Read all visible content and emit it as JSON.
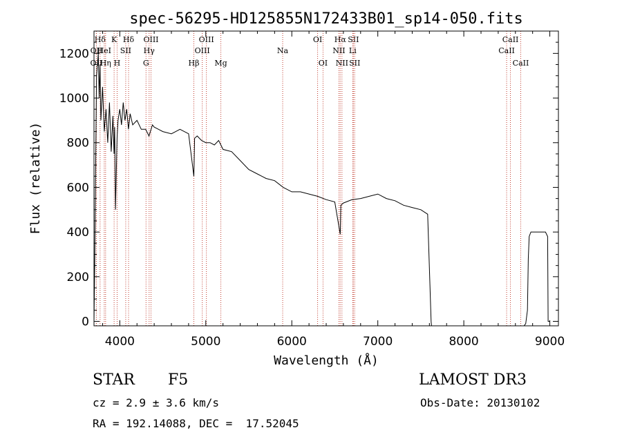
{
  "chart_data": {
    "type": "line",
    "title": "spec-56295-HD125855N172433B01_sp14-050.fits",
    "xlabel": "Wavelength (Å)",
    "ylabel": "Flux (relative)",
    "xlim": [
      3700,
      9100
    ],
    "ylim": [
      -20,
      1300
    ],
    "xticks": [
      4000,
      5000,
      6000,
      7000,
      8000,
      9000
    ],
    "yticks": [
      0,
      200,
      400,
      600,
      800,
      1000,
      1200
    ],
    "grid": false,
    "series": [
      {
        "name": "flux",
        "x": [
          3700,
          3710,
          3730,
          3750,
          3760,
          3770,
          3780,
          3800,
          3820,
          3840,
          3860,
          3880,
          3900,
          3920,
          3933,
          3940,
          3950,
          3968,
          3980,
          4000,
          4020,
          4040,
          4060,
          4080,
          4101,
          4120,
          4150,
          4200,
          4250,
          4300,
          4340,
          4380,
          4400,
          4450,
          4500,
          4600,
          4700,
          4800,
          4861,
          4870,
          4900,
          4950,
          5000,
          5050,
          5100,
          5150,
          5200,
          5300,
          5400,
          5500,
          5600,
          5700,
          5800,
          5900,
          6000,
          6100,
          6200,
          6300,
          6400,
          6500,
          6563,
          6570,
          6600,
          6700,
          6800,
          6900,
          7000,
          7100,
          7200,
          7300,
          7400,
          7500,
          7580,
          7620,
          7625,
          7630,
          7640,
          7700,
          7800,
          7900,
          8000,
          8100,
          8200,
          8300,
          8400,
          8500,
          8600,
          8700,
          8720,
          8740,
          8750,
          8760,
          8780,
          8800,
          8850,
          8900,
          8950,
          8975,
          8980,
          9000
        ],
        "y": [
          0,
          300,
          1100,
          1200,
          1000,
          1150,
          900,
          1050,
          850,
          950,
          800,
          980,
          760,
          920,
          750,
          870,
          500,
          820,
          900,
          950,
          880,
          980,
          900,
          950,
          860,
          930,
          880,
          900,
          860,
          860,
          830,
          880,
          870,
          860,
          850,
          840,
          860,
          840,
          650,
          820,
          830,
          810,
          800,
          800,
          790,
          810,
          770,
          760,
          720,
          680,
          660,
          640,
          630,
          600,
          580,
          580,
          570,
          560,
          545,
          535,
          390,
          520,
          530,
          545,
          550,
          560,
          570,
          550,
          540,
          520,
          510,
          500,
          480,
          0,
          -20,
          -30,
          -30,
          -30,
          -25,
          -30,
          -28,
          -30,
          -25,
          -30,
          -28,
          -30,
          -25,
          -20,
          -10,
          50,
          280,
          380,
          400,
          400,
          400,
          400,
          400,
          380,
          0,
          0
        ]
      }
    ],
    "spectral_lines": [
      {
        "label": "Hδ",
        "wavelength": 3771,
        "row": 1
      },
      {
        "label": "OII",
        "wavelength": 3728,
        "row": 2
      },
      {
        "label": "OII",
        "wavelength": 3727,
        "row": 3
      },
      {
        "label": "HeI",
        "wavelength": 3819,
        "row": 2
      },
      {
        "label": "Hη",
        "wavelength": 3835,
        "row": 3
      },
      {
        "label": "K",
        "wavelength": 3934,
        "row": 1
      },
      {
        "label": "H",
        "wavelength": 3969,
        "row": 3
      },
      {
        "label": "SII",
        "wavelength": 4069,
        "row": 2
      },
      {
        "label": "Hδ",
        "wavelength": 4102,
        "row": 1
      },
      {
        "label": "OIII",
        "wavelength": 4363,
        "row": 1
      },
      {
        "label": "Hγ",
        "wavelength": 4341,
        "row": 2
      },
      {
        "label": "G",
        "wavelength": 4305,
        "row": 3
      },
      {
        "label": "Hβ",
        "wavelength": 4861,
        "row": 3
      },
      {
        "label": "OIII",
        "wavelength": 4959,
        "row": 2
      },
      {
        "label": "OIII",
        "wavelength": 5007,
        "row": 1
      },
      {
        "label": "Mg",
        "wavelength": 5175,
        "row": 3
      },
      {
        "label": "Na",
        "wavelength": 5894,
        "row": 2
      },
      {
        "label": "OI",
        "wavelength": 6300,
        "row": 1
      },
      {
        "label": "OI",
        "wavelength": 6363,
        "row": 3
      },
      {
        "label": "Hα",
        "wavelength": 6563,
        "row": 1
      },
      {
        "label": "NII",
        "wavelength": 6548,
        "row": 2
      },
      {
        "label": "NII",
        "wavelength": 6583,
        "row": 3
      },
      {
        "label": "SII",
        "wavelength": 6716,
        "row": 1
      },
      {
        "label": "Li",
        "wavelength": 6708,
        "row": 2
      },
      {
        "label": "SII",
        "wavelength": 6731,
        "row": 3
      },
      {
        "label": "CaII",
        "wavelength": 8542,
        "row": 1
      },
      {
        "label": "CaII",
        "wavelength": 8498,
        "row": 2
      },
      {
        "label": "CaII",
        "wavelength": 8662,
        "row": 3
      }
    ]
  },
  "info": {
    "object_class": "STAR",
    "subclass": "F5",
    "survey": "LAMOST DR3",
    "redshift": "cz = 2.9 ± 3.6 km/s",
    "obs_date": "Obs-Date: 20130102",
    "coords": "RA = 192.14088, DEC =  17.52045"
  }
}
